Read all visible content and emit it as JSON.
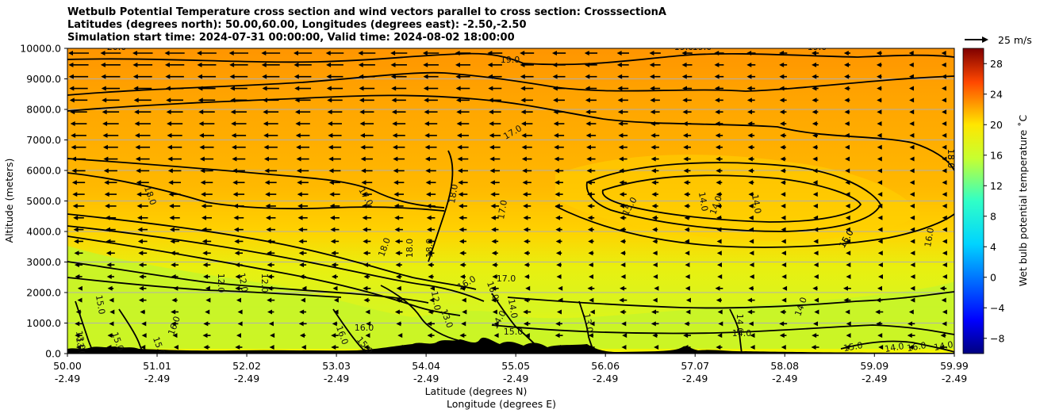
{
  "chart_data": {
    "type": "contour",
    "title_lines": [
      "Wetbulb Potential Temperature cross section and wind vectors parallel to cross section: CrosssectionA",
      "Latitudes (degrees north): 50.00,60.00, Longitudes (degrees east): -2.50,-2.50",
      "Simulation start time: 2024-07-31 00:00:00, Valid time: 2024-08-02 18:00:00"
    ],
    "xlabel_lat": "Latitude (degrees N)",
    "xlabel_lon": "Longitude (degrees E)",
    "ylabel": "Altitude (meters)",
    "x_ticks": [
      {
        "lat": "50.00",
        "lon": "-2.49"
      },
      {
        "lat": "51.01",
        "lon": "-2.49"
      },
      {
        "lat": "52.02",
        "lon": "-2.49"
      },
      {
        "lat": "53.03",
        "lon": "-2.49"
      },
      {
        "lat": "54.04",
        "lon": "-2.49"
      },
      {
        "lat": "55.05",
        "lon": "-2.49"
      },
      {
        "lat": "56.06",
        "lon": "-2.49"
      },
      {
        "lat": "57.07",
        "lon": "-2.49"
      },
      {
        "lat": "58.08",
        "lon": "-2.49"
      },
      {
        "lat": "59.09",
        "lon": "-2.49"
      },
      {
        "lat": "59.99",
        "lon": "-2.49"
      }
    ],
    "xlim": [
      50.0,
      59.99
    ],
    "y_ticks": [
      "0.0",
      "1000.0",
      "2000.0",
      "3000.0",
      "4000.0",
      "5000.0",
      "6000.0",
      "7000.0",
      "8000.0",
      "9000.0",
      "10000.0"
    ],
    "ylim": [
      0,
      10000
    ],
    "grid": "horizontal",
    "colorbar": {
      "label": "Wet bulb potential temperature ˚C",
      "ticks": [
        "−8",
        "−4",
        "0",
        "4",
        "8",
        "12",
        "16",
        "20",
        "24",
        "28"
      ],
      "range": [
        -10,
        30
      ],
      "colormap": "jet"
    },
    "quiver_key": "25 m/s",
    "contour_labels": [
      "20.0",
      "19.0",
      "19.0",
      "19.0",
      "19.0",
      "18.0",
      "17.0",
      "17.0",
      "18.0",
      "18.0",
      "17.0",
      "18.0",
      "18.0",
      "18.0",
      "15.0",
      "14.0",
      "14.0",
      "14.0",
      "15.0",
      "16.0",
      "15.0",
      "12.0",
      "12.0",
      "12.0",
      "16.0",
      "17.0",
      "16.0",
      "12.0",
      "13.0",
      "14.0",
      "14.0",
      "15.0",
      "13.0",
      "14.0",
      "14.0",
      "14.0",
      "13.0",
      "16.0",
      "16.0",
      "16.0",
      "15.0",
      "15.0",
      "15.0",
      "14.0",
      "16.0",
      "15.0",
      "13.0",
      "14.0",
      "15.0",
      "16.0"
    ]
  }
}
